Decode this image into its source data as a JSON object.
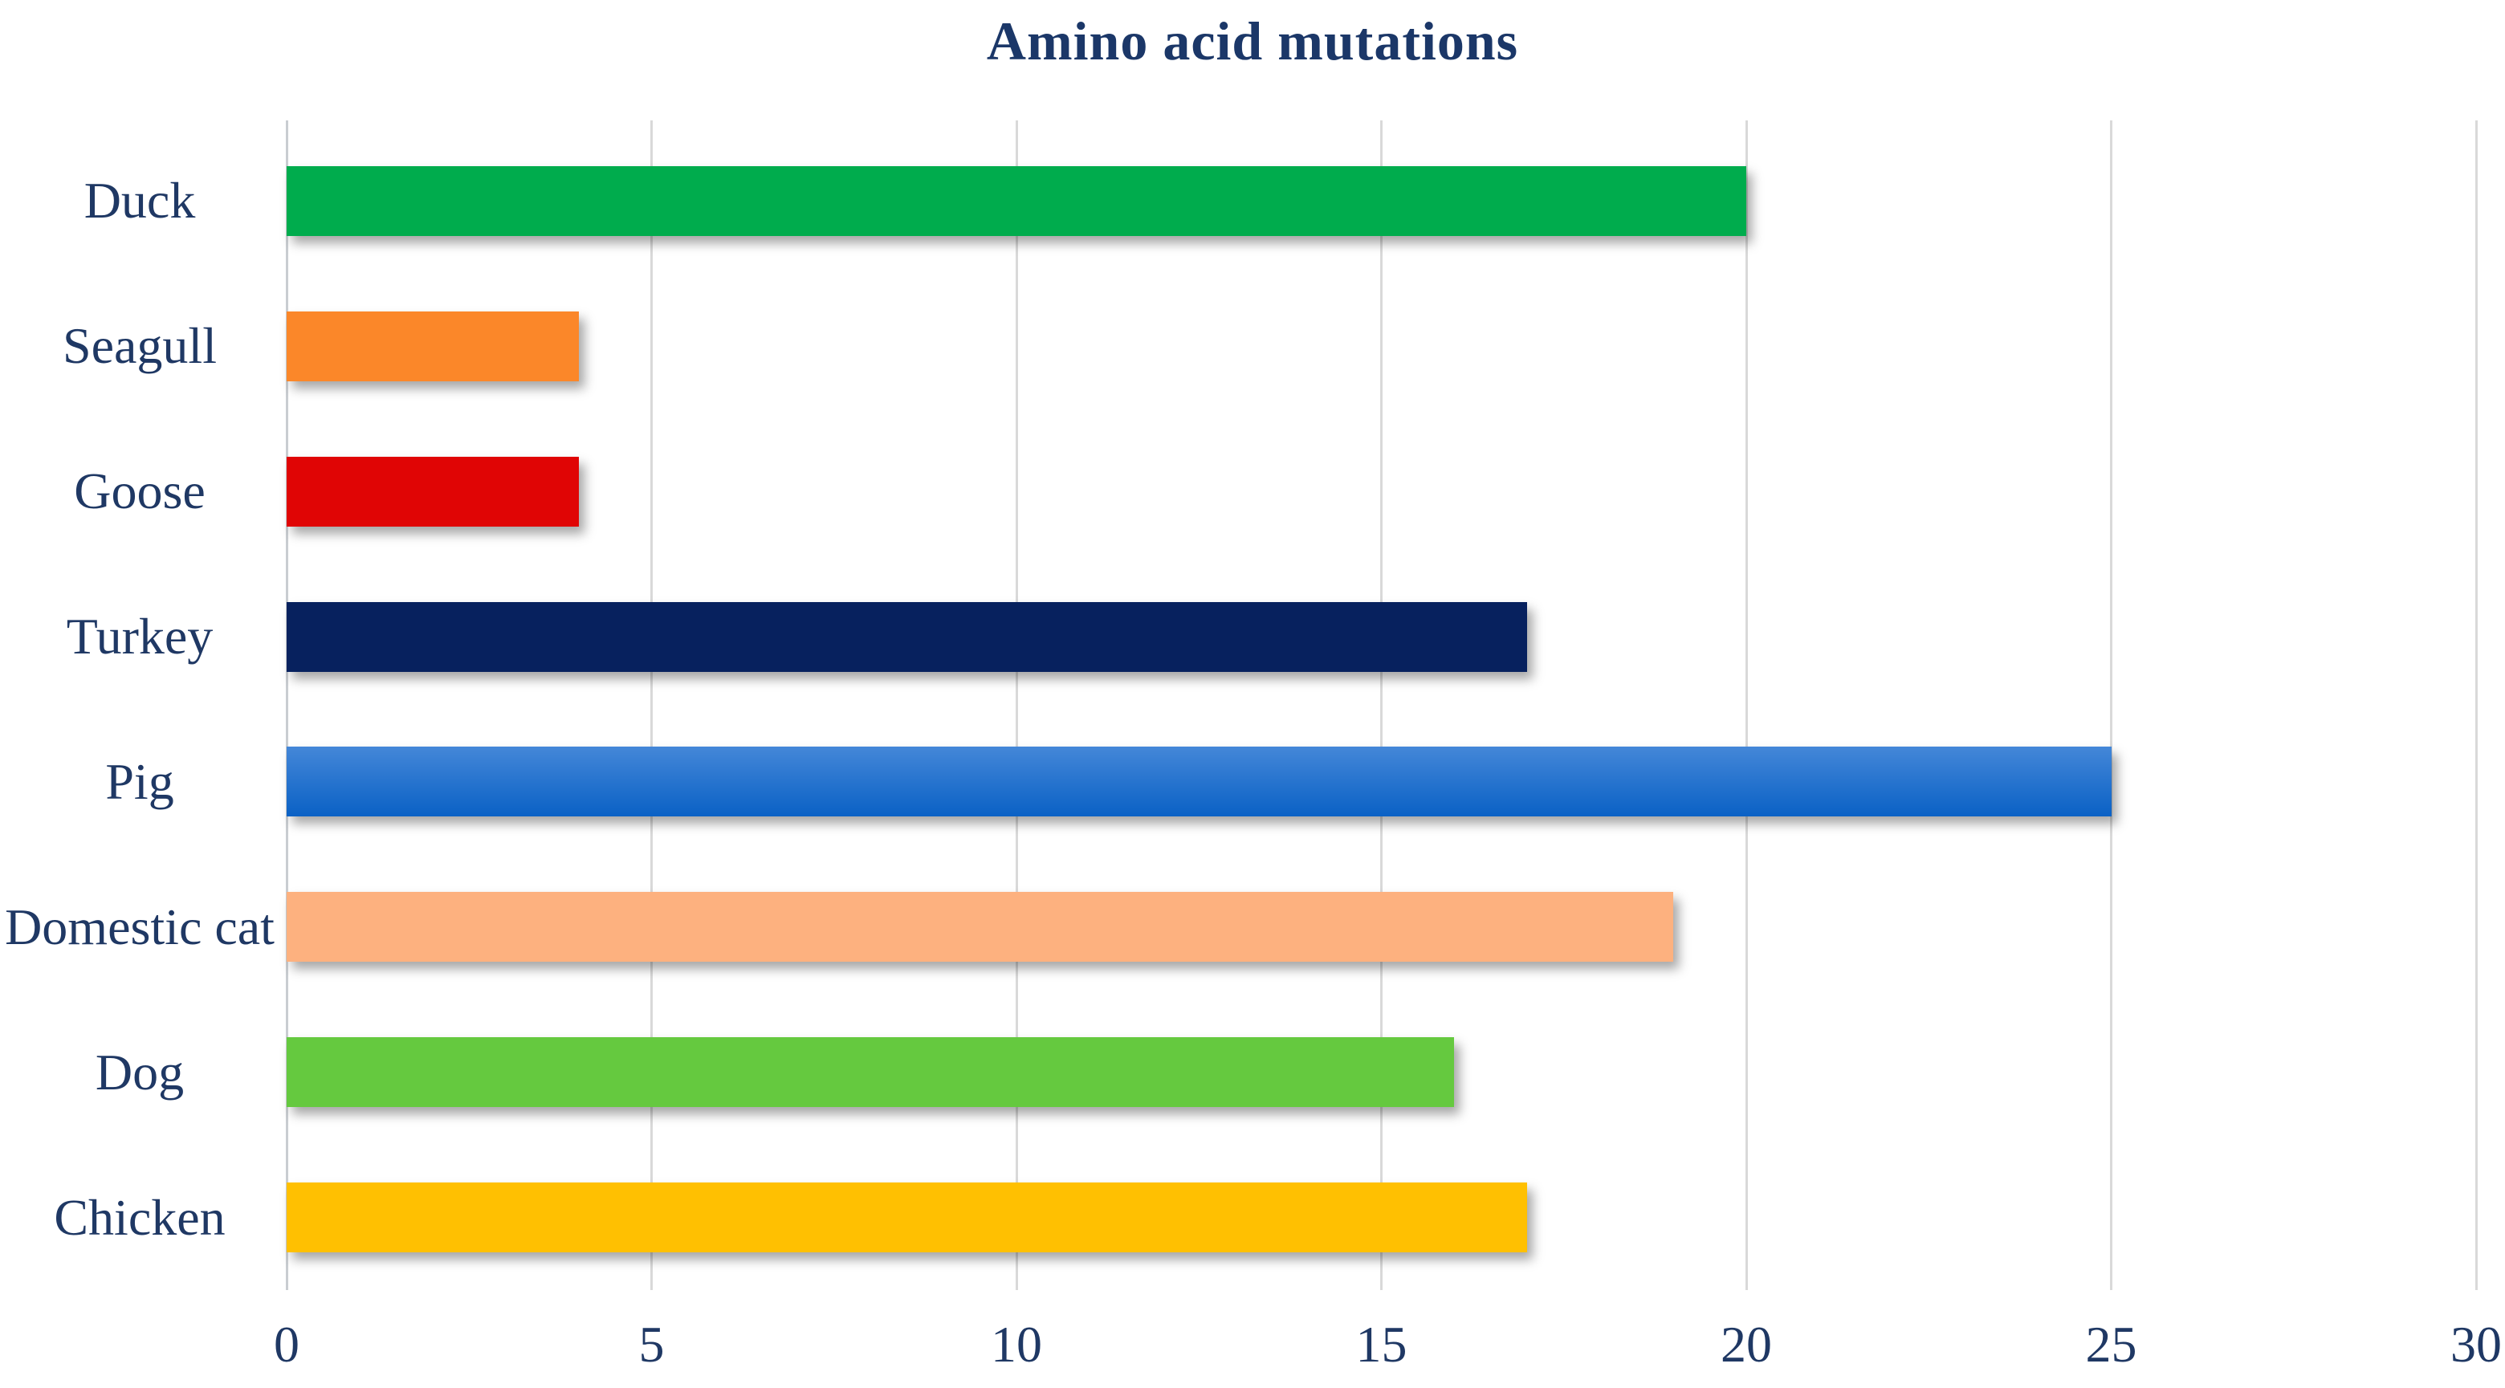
{
  "title": "Amino acid mutations",
  "colors": {
    "title_text": "#1B3768",
    "label_text": "#1F3864",
    "gridline": "#D9D9D9",
    "axis_line": "#C9CDD1",
    "background": "#FFFFFF",
    "pig_gradient_top": "#4487D8",
    "pig_gradient_bottom": "#0A61C5"
  },
  "chart_data": {
    "type": "bar",
    "orientation": "horizontal",
    "title": "Amino acid mutations",
    "categories": [
      "Duck",
      "Seagull",
      "Goose",
      "Turkey",
      "Pig",
      "Domestic cat",
      "Dog",
      "Chicken"
    ],
    "values": [
      20,
      4,
      4,
      17,
      25,
      19,
      16,
      17
    ],
    "bar_colors": [
      "#00AC4D",
      "#FB8729",
      "#E00505",
      "#07215E",
      "#1567C8",
      "#FDB17F",
      "#65C93F",
      "#FFC001"
    ],
    "xlabel": "",
    "ylabel": "",
    "xlim": [
      0,
      30
    ],
    "x_ticks": [
      0,
      5,
      10,
      15,
      20,
      25,
      30
    ],
    "grid": true,
    "legend": "none"
  }
}
